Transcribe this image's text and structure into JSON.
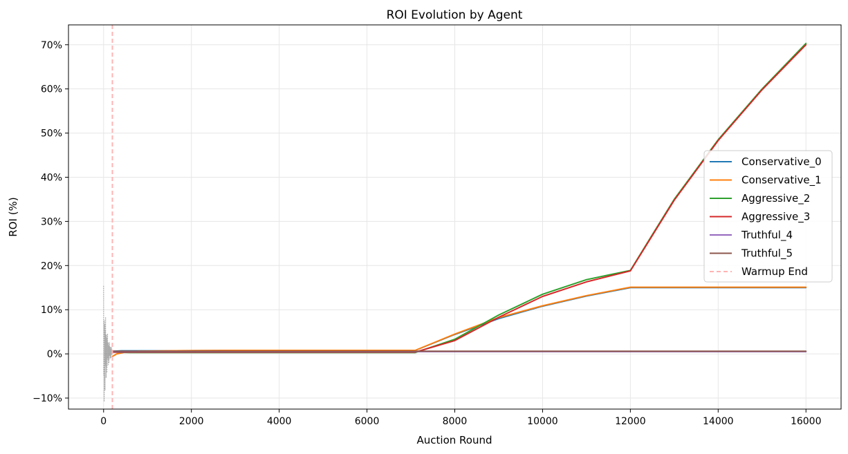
{
  "chart_data": {
    "type": "line",
    "title": "ROI Evolution by Agent",
    "xlabel": "Auction Round",
    "ylabel": "ROI (%)",
    "xlim": [
      -800,
      16800
    ],
    "ylim": [
      -0.125,
      0.745
    ],
    "x_ticks": [
      0,
      2000,
      4000,
      6000,
      8000,
      10000,
      12000,
      14000,
      16000
    ],
    "x_tick_labels": [
      "0",
      "2000",
      "4000",
      "6000",
      "8000",
      "10000",
      "12000",
      "14000",
      "16000"
    ],
    "y_ticks": [
      -0.1,
      0.0,
      0.1,
      0.2,
      0.3,
      0.4,
      0.5,
      0.6,
      0.7
    ],
    "y_tick_labels": [
      "−10%",
      "0%",
      "10%",
      "20%",
      "30%",
      "40%",
      "50%",
      "60%",
      "70%"
    ],
    "grid": true,
    "legend_position": "center-right",
    "warmup_end": 200,
    "series": [
      {
        "name": "Conservative_0",
        "color": "#1f77b4",
        "x": [
          200,
          400,
          800,
          1500,
          3000,
          6000,
          7100,
          8000,
          9000,
          10000,
          11000,
          12000,
          13000,
          16000
        ],
        "y": [
          0.006,
          0.007,
          0.007,
          0.007,
          0.008,
          0.008,
          0.008,
          0.044,
          0.08,
          0.108,
          0.131,
          0.15,
          0.15,
          0.15
        ]
      },
      {
        "name": "Conservative_1",
        "color": "#ff7f0e",
        "x": [
          200,
          300,
          500,
          800,
          1500,
          3000,
          6000,
          7100,
          8000,
          9000,
          10000,
          11000,
          12000,
          13000,
          16000
        ],
        "y": [
          -0.006,
          0.0,
          0.004,
          0.006,
          0.007,
          0.008,
          0.008,
          0.008,
          0.045,
          0.082,
          0.109,
          0.132,
          0.151,
          0.151,
          0.151
        ]
      },
      {
        "name": "Aggressive_2",
        "color": "#2ca02c",
        "x": [
          200,
          600,
          1500,
          3000,
          6000,
          7100,
          8000,
          9000,
          10000,
          11000,
          12000,
          12500,
          13000,
          14000,
          15000,
          16000
        ],
        "y": [
          0.004,
          0.003,
          0.003,
          0.003,
          0.003,
          0.003,
          0.033,
          0.088,
          0.135,
          0.168,
          0.189,
          0.27,
          0.35,
          0.485,
          0.6,
          0.703
        ]
      },
      {
        "name": "Aggressive_3",
        "color": "#d62728",
        "x": [
          200,
          600,
          1500,
          3000,
          6000,
          7100,
          8000,
          9000,
          10000,
          11000,
          12000,
          12500,
          13000,
          14000,
          15000,
          16000
        ],
        "y": [
          0.004,
          0.004,
          0.004,
          0.004,
          0.004,
          0.004,
          0.03,
          0.083,
          0.13,
          0.163,
          0.188,
          0.268,
          0.348,
          0.483,
          0.598,
          0.7
        ]
      },
      {
        "name": "Truthful_4",
        "color": "#9467bd",
        "x": [
          200,
          1000,
          4000,
          8000,
          12000,
          16000
        ],
        "y": [
          0.005,
          0.005,
          0.005,
          0.005,
          0.005,
          0.005
        ]
      },
      {
        "name": "Truthful_5",
        "color": "#8c564b",
        "x": [
          200,
          1000,
          4000,
          8000,
          12000,
          16000
        ],
        "y": [
          0.006,
          0.006,
          0.006,
          0.006,
          0.006,
          0.006
        ]
      },
      {
        "name": "Warmup End",
        "color": "#ffb3b3",
        "dashed": true
      }
    ]
  }
}
